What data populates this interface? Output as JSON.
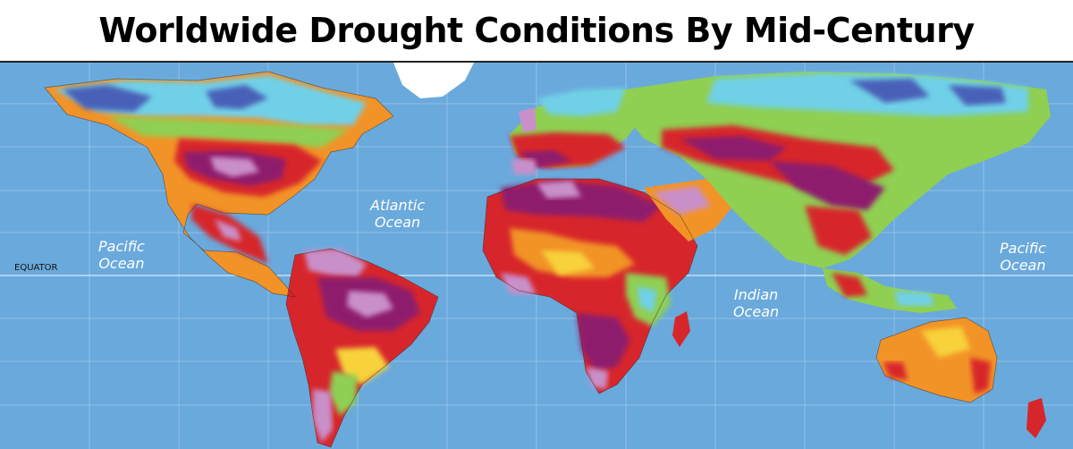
{
  "title": "Worldwide Drought Conditions By Mid-Century",
  "equator_label": "EQUATOR",
  "ocean_labels": {
    "atlantic": "Atlantic\nOcean",
    "pacific_west": "Pacific\nOcean",
    "pacific_east": "Pacific\nOcean",
    "indian": "Indian\nOcean"
  },
  "colors": {
    "ocean": "#6aa9dc",
    "extreme": "#c98fc9",
    "severe": "#8e1f6d",
    "high": "#d7262b",
    "moderate": "#f29327",
    "mild": "#f7d23b",
    "neutral": "#8fcf52",
    "wet": "#6fd0e8",
    "very_wet": "#4a60b8",
    "ice": "#ffffff"
  }
}
